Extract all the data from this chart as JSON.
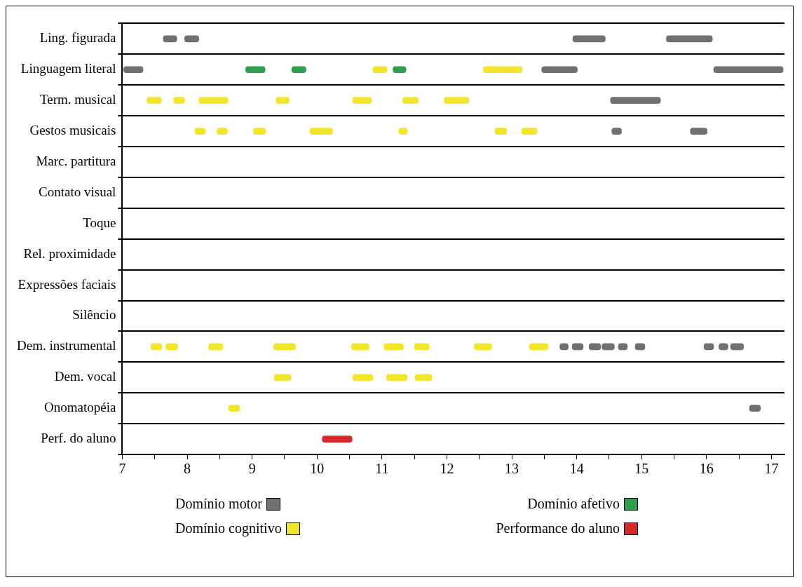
{
  "chart_data": {
    "type": "bar",
    "orientation": "horizontal",
    "categories": [
      "Ling. figurada",
      "Linguagem literal",
      "Term. musical",
      "Gestos musicais",
      "Marc. partitura",
      "Contato visual",
      "Toque",
      "Rel. proximidade",
      "Expressões faciais",
      "Silêncio",
      "Dem. instrumental",
      "Dem. vocal",
      "Onomatopéia",
      "Perf. do aluno"
    ],
    "xlim": [
      7,
      17.2
    ],
    "xticks": [
      7,
      {
        "value": 7.5,
        "label": null
      },
      8,
      {
        "value": 8.5,
        "label": null
      },
      9,
      {
        "value": 9.5,
        "label": null
      },
      10,
      {
        "value": 10.5,
        "label": null
      },
      11,
      {
        "value": 11.5,
        "label": null
      },
      12,
      {
        "value": 12.5,
        "label": null
      },
      13,
      {
        "value": 13.5,
        "label": null
      },
      14,
      {
        "value": 14.5,
        "label": null
      },
      15,
      {
        "value": 15.5,
        "label": null
      },
      16,
      {
        "value": 16.5,
        "label": null
      },
      17
    ],
    "grid": "y",
    "legend": "bottom",
    "series": [
      {
        "name": "Domínio motor",
        "color": "#707070",
        "base": [
          7.63,
          7.02,
          14.52,
          14.54,
          null,
          null,
          null,
          null,
          null,
          null,
          13.74,
          null,
          16.66,
          null
        ],
        "values": [
          0.21,
          0.3,
          0.77,
          0.15,
          null,
          null,
          null,
          null,
          null,
          null,
          0.13,
          null,
          0.17,
          null
        ]
      },
      {
        "color": "#707070",
        "base": [
          7.96,
          13.46,
          null,
          15.75,
          null,
          null,
          null,
          null,
          null,
          null,
          13.93,
          null,
          null,
          null
        ],
        "values": [
          0.22,
          0.55,
          null,
          0.26,
          null,
          null,
          null,
          null,
          null,
          null,
          0.17,
          null,
          null,
          null
        ]
      },
      {
        "color": "#707070",
        "base": [
          13.94,
          16.11,
          null,
          null,
          null,
          null,
          null,
          null,
          null,
          null,
          14.19,
          null,
          null,
          null
        ],
        "values": [
          0.5,
          1.07,
          null,
          null,
          null,
          null,
          null,
          null,
          null,
          null,
          0.18,
          null,
          null,
          null
        ]
      },
      {
        "color": "#707070",
        "base": [
          15.38,
          null,
          null,
          null,
          null,
          null,
          null,
          null,
          null,
          null,
          14.39,
          null,
          null,
          null
        ],
        "values": [
          0.71,
          null,
          null,
          null,
          null,
          null,
          null,
          null,
          null,
          null,
          0.19,
          null,
          null,
          null
        ]
      },
      {
        "color": "#707070",
        "base": [
          null,
          null,
          null,
          null,
          null,
          null,
          null,
          null,
          null,
          null,
          14.64,
          null,
          null,
          null
        ],
        "values": [
          null,
          null,
          null,
          null,
          null,
          null,
          null,
          null,
          null,
          null,
          0.14,
          null,
          null,
          null
        ]
      },
      {
        "color": "#707070",
        "base": [
          null,
          null,
          null,
          null,
          null,
          null,
          null,
          null,
          null,
          null,
          14.9,
          null,
          null,
          null
        ],
        "values": [
          null,
          null,
          null,
          null,
          null,
          null,
          null,
          null,
          null,
          null,
          0.15,
          null,
          null,
          null
        ]
      },
      {
        "color": "#707070",
        "base": [
          null,
          null,
          null,
          null,
          null,
          null,
          null,
          null,
          null,
          null,
          15.96,
          null,
          null,
          null
        ],
        "values": [
          null,
          null,
          null,
          null,
          null,
          null,
          null,
          null,
          null,
          null,
          0.15,
          null,
          null,
          null
        ]
      },
      {
        "color": "#707070",
        "base": [
          null,
          null,
          null,
          null,
          null,
          null,
          null,
          null,
          null,
          null,
          16.19,
          null,
          null,
          null
        ],
        "values": [
          null,
          null,
          null,
          null,
          null,
          null,
          null,
          null,
          null,
          null,
          0.14,
          null,
          null,
          null
        ]
      },
      {
        "color": "#707070",
        "base": [
          null,
          null,
          null,
          null,
          null,
          null,
          null,
          null,
          null,
          null,
          16.37,
          null,
          null,
          null
        ],
        "values": [
          null,
          null,
          null,
          null,
          null,
          null,
          null,
          null,
          null,
          null,
          0.2,
          null,
          null,
          null
        ]
      },
      {
        "name": "Domínio afetivo",
        "color": "#2e9e4f",
        "base": [
          null,
          8.9,
          null,
          null,
          null,
          null,
          null,
          null,
          null,
          null,
          null,
          null,
          null,
          null
        ],
        "values": [
          null,
          0.3,
          null,
          null,
          null,
          null,
          null,
          null,
          null,
          null,
          null,
          null,
          null,
          null
        ]
      },
      {
        "color": "#2e9e4f",
        "base": [
          null,
          9.61,
          null,
          null,
          null,
          null,
          null,
          null,
          null,
          null,
          null,
          null,
          null,
          null
        ],
        "values": [
          null,
          0.22,
          null,
          null,
          null,
          null,
          null,
          null,
          null,
          null,
          null,
          null,
          null,
          null
        ]
      },
      {
        "color": "#2e9e4f",
        "base": [
          null,
          11.17,
          null,
          null,
          null,
          null,
          null,
          null,
          null,
          null,
          null,
          null,
          null,
          null
        ],
        "values": [
          null,
          0.2,
          null,
          null,
          null,
          null,
          null,
          null,
          null,
          null,
          null,
          null,
          null,
          null
        ]
      },
      {
        "name": "Domínio cognitivo",
        "color": "#f2e52a",
        "base": [
          null,
          10.86,
          7.38,
          8.12,
          null,
          null,
          null,
          null,
          null,
          null,
          7.44,
          9.34,
          8.64,
          null
        ],
        "values": [
          null,
          0.22,
          0.22,
          0.16,
          null,
          null,
          null,
          null,
          null,
          null,
          0.17,
          0.26,
          0.17,
          null
        ]
      },
      {
        "color": "#f2e52a",
        "base": [
          null,
          12.56,
          7.79,
          8.46,
          null,
          null,
          null,
          null,
          null,
          null,
          7.67,
          10.55,
          null,
          null
        ],
        "values": [
          null,
          0.6,
          0.17,
          0.16,
          null,
          null,
          null,
          null,
          null,
          null,
          0.18,
          0.31,
          null,
          null
        ]
      },
      {
        "color": "#f2e52a",
        "base": [
          null,
          null,
          8.18,
          9.02,
          null,
          null,
          null,
          null,
          null,
          null,
          8.33,
          11.07,
          null,
          null
        ],
        "values": [
          null,
          null,
          0.45,
          0.19,
          null,
          null,
          null,
          null,
          null,
          null,
          0.22,
          0.32,
          null,
          null
        ]
      },
      {
        "color": "#f2e52a",
        "base": [
          null,
          null,
          9.37,
          9.89,
          null,
          null,
          null,
          null,
          null,
          null,
          9.33,
          11.51,
          null,
          null
        ],
        "values": [
          null,
          null,
          0.2,
          0.35,
          null,
          null,
          null,
          null,
          null,
          null,
          0.34,
          0.26,
          null,
          null
        ]
      },
      {
        "color": "#f2e52a",
        "base": [
          null,
          null,
          10.55,
          11.26,
          null,
          null,
          null,
          null,
          null,
          null,
          10.53,
          null,
          null,
          null
        ],
        "values": [
          null,
          null,
          0.29,
          0.13,
          null,
          null,
          null,
          null,
          null,
          null,
          0.27,
          null,
          null,
          null
        ]
      },
      {
        "color": "#f2e52a",
        "base": [
          null,
          null,
          11.32,
          12.74,
          null,
          null,
          null,
          null,
          null,
          null,
          11.03,
          null,
          null,
          null
        ],
        "values": [
          null,
          null,
          0.24,
          0.18,
          null,
          null,
          null,
          null,
          null,
          null,
          0.3,
          null,
          null,
          null
        ]
      },
      {
        "color": "#f2e52a",
        "base": [
          null,
          null,
          11.96,
          13.15,
          null,
          null,
          null,
          null,
          null,
          null,
          11.5,
          null,
          null,
          null
        ],
        "values": [
          null,
          null,
          0.38,
          0.24,
          null,
          null,
          null,
          null,
          null,
          null,
          0.23,
          null,
          null,
          null
        ]
      },
      {
        "color": "#f2e52a",
        "base": [
          null,
          null,
          null,
          null,
          null,
          null,
          null,
          null,
          null,
          null,
          12.42,
          null,
          null,
          null
        ],
        "values": [
          null,
          null,
          null,
          null,
          null,
          null,
          null,
          null,
          null,
          null,
          0.27,
          null,
          null,
          null
        ]
      },
      {
        "color": "#f2e52a",
        "base": [
          null,
          null,
          null,
          null,
          null,
          null,
          null,
          null,
          null,
          null,
          13.27,
          null,
          null,
          null
        ],
        "values": [
          null,
          null,
          null,
          null,
          null,
          null,
          null,
          null,
          null,
          null,
          0.29,
          null,
          null,
          null
        ]
      },
      {
        "name": "Performance do aluno",
        "color": "#d42a2a",
        "base": [
          null,
          null,
          null,
          null,
          null,
          null,
          null,
          null,
          null,
          null,
          null,
          null,
          null,
          10.08
        ],
        "values": [
          null,
          null,
          null,
          null,
          null,
          null,
          null,
          null,
          null,
          null,
          null,
          null,
          null,
          0.46
        ]
      }
    ]
  }
}
